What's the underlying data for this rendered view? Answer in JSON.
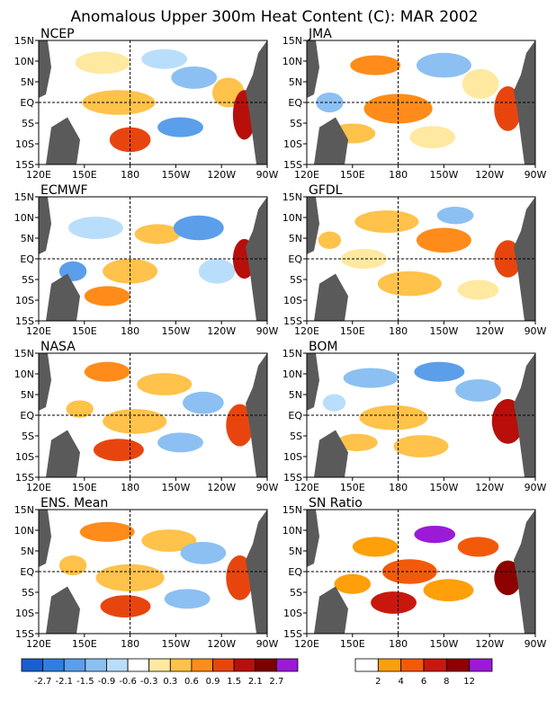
{
  "title": "Anomalous Upper 300m Heat Content (C): MAR 2002",
  "panels": [
    {
      "label": "NCEP",
      "kind": "anomaly"
    },
    {
      "label": "JMA",
      "kind": "anomaly"
    },
    {
      "label": "ECMWF",
      "kind": "anomaly"
    },
    {
      "label": "GFDL",
      "kind": "anomaly"
    },
    {
      "label": "NASA",
      "kind": "anomaly"
    },
    {
      "label": "BOM",
      "kind": "anomaly"
    },
    {
      "label": "ENS. Mean",
      "kind": "anomaly"
    },
    {
      "label": "SN Ratio",
      "kind": "sn"
    }
  ],
  "lat_ticks": [
    "15N",
    "10N",
    "5N",
    "EQ",
    "5S",
    "10S",
    "15S"
  ],
  "lon_ticks": [
    "120E",
    "150E",
    "180",
    "150W",
    "120W",
    "90W"
  ],
  "anomaly_scale": {
    "colors": [
      "#1a5fd0",
      "#2f7ee0",
      "#5b9eea",
      "#8cc0f2",
      "#b9defb",
      "#ffffff",
      "#ffe9a0",
      "#ffc24a",
      "#ff8c1a",
      "#e8450e",
      "#b80f0a",
      "#7a0000",
      "#9b1ad6"
    ],
    "labels": [
      "-2.7",
      "-2.1",
      "-1.5",
      "-0.9",
      "-0.6",
      "-0.3",
      "0.3",
      "0.6",
      "0.9",
      "1.5",
      "2.1",
      "2.7"
    ]
  },
  "sn_scale": {
    "colors": [
      "#ffffff",
      "#ff9f0a",
      "#f25a0a",
      "#c8180e",
      "#8e0000",
      "#9b1ad6"
    ],
    "labels": [
      "2",
      "4",
      "6",
      "8",
      "12"
    ]
  },
  "colors": {
    "land": "#5a5a5a",
    "border": "#000000"
  }
}
